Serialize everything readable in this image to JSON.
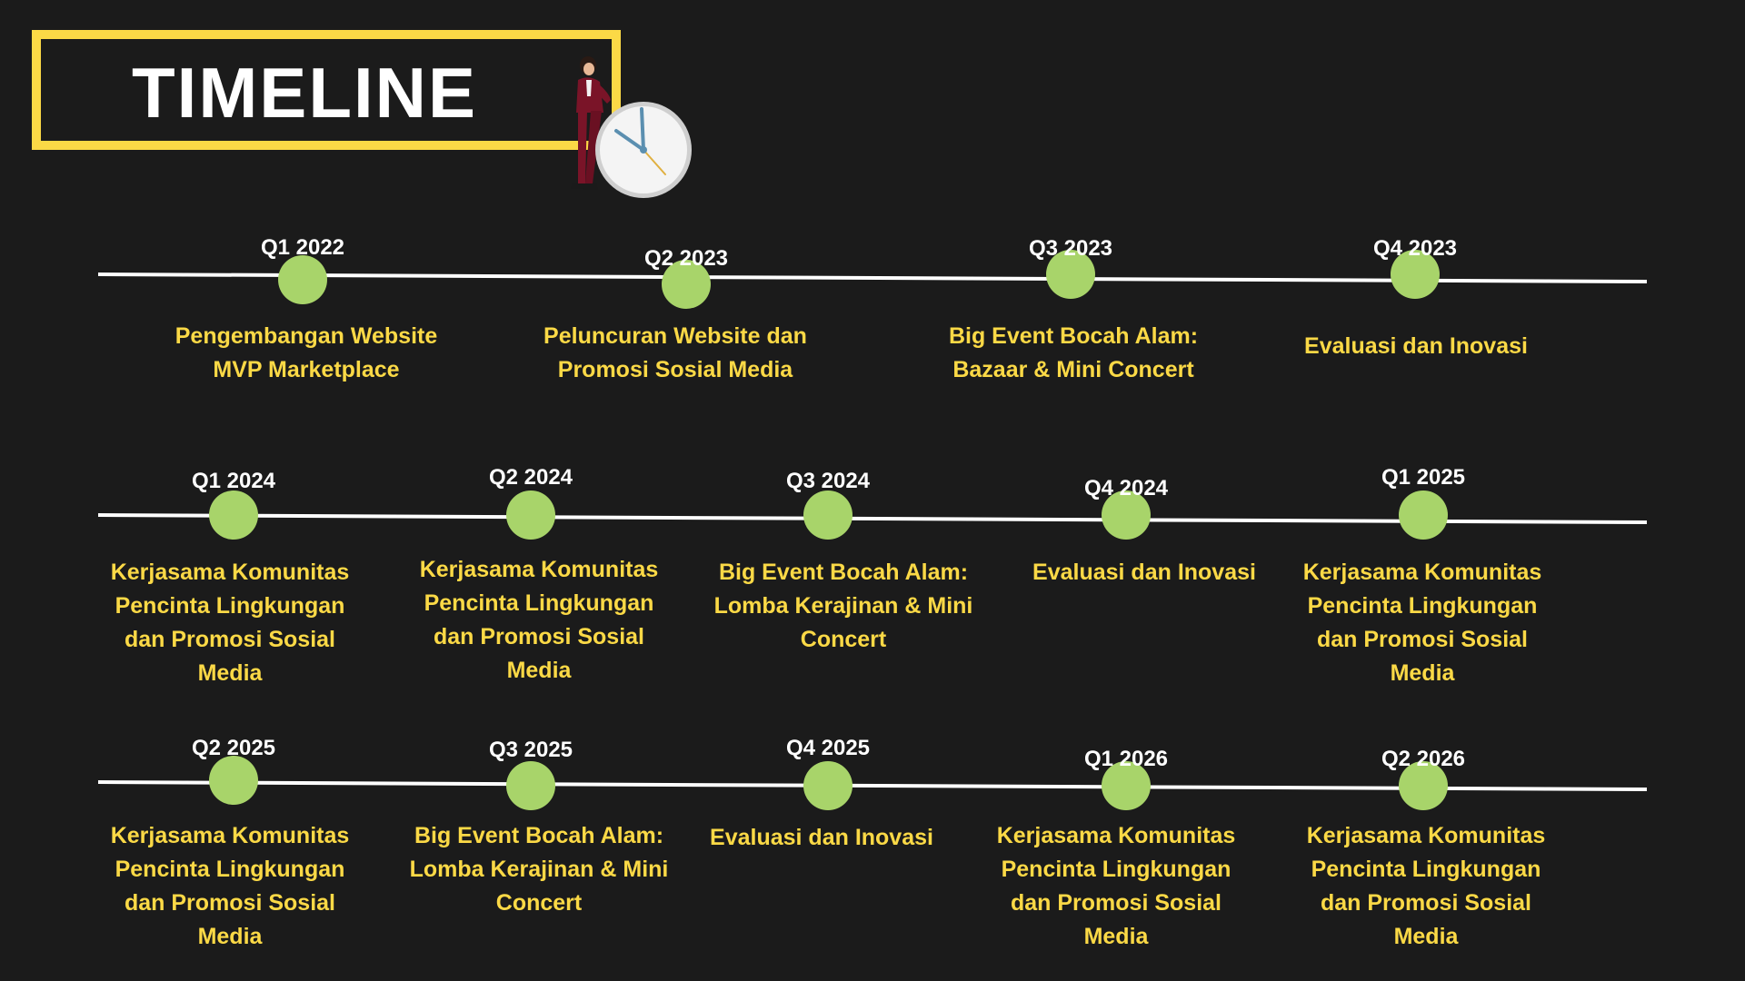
{
  "title": "TIMELINE",
  "colors": {
    "background": "#1b1b1b",
    "title_border": "#fbd946",
    "node": "#a8d46a",
    "period_text": "#ffffff",
    "description_text": "#fbd946",
    "line": "#ffffff"
  },
  "decoration": {
    "illustration": "woman-leaning-on-clock",
    "icons": [
      "person-icon",
      "clock-icon"
    ]
  },
  "rows": [
    {
      "milestones": [
        {
          "period": "Q1 2022",
          "text": "Pengembangan Website MVP Marketplace"
        },
        {
          "period": "Q2 2023",
          "text": "Peluncuran Website dan Promosi Sosial Media"
        },
        {
          "period": "Q3 2023",
          "text": "Big Event Bocah Alam: Bazaar & Mini Concert"
        },
        {
          "period": "Q4 2023",
          "text": "Evaluasi dan Inovasi"
        }
      ]
    },
    {
      "milestones": [
        {
          "period": "Q1 2024",
          "text": "Kerjasama Komunitas Pencinta Lingkungan dan Promosi Sosial Media"
        },
        {
          "period": "Q2 2024",
          "text": "Kerjasama Komunitas Pencinta Lingkungan dan Promosi Sosial Media"
        },
        {
          "period": "Q3 2024",
          "text": "Big Event Bocah Alam: Lomba Kerajinan & Mini Concert"
        },
        {
          "period": "Q4 2024",
          "text": "Evaluasi dan Inovasi"
        },
        {
          "period": "Q1 2025",
          "text": "Kerjasama Komunitas Pencinta Lingkungan dan Promosi Sosial Media"
        }
      ]
    },
    {
      "milestones": [
        {
          "period": "Q2 2025",
          "text": "Kerjasama Komunitas Pencinta Lingkungan dan Promosi Sosial Media"
        },
        {
          "period": "Q3 2025",
          "text": "Big Event Bocah Alam: Lomba Kerajinan & Mini Concert"
        },
        {
          "period": "Q4 2025",
          "text": "Evaluasi dan Inovasi"
        },
        {
          "period": "Q1 2026",
          "text": "Kerjasama Komunitas Pencinta Lingkungan dan Promosi Sosial Media"
        },
        {
          "period": "Q2 2026",
          "text": "Kerjasama Komunitas Pencinta Lingkungan dan Promosi Sosial Media"
        }
      ]
    }
  ]
}
